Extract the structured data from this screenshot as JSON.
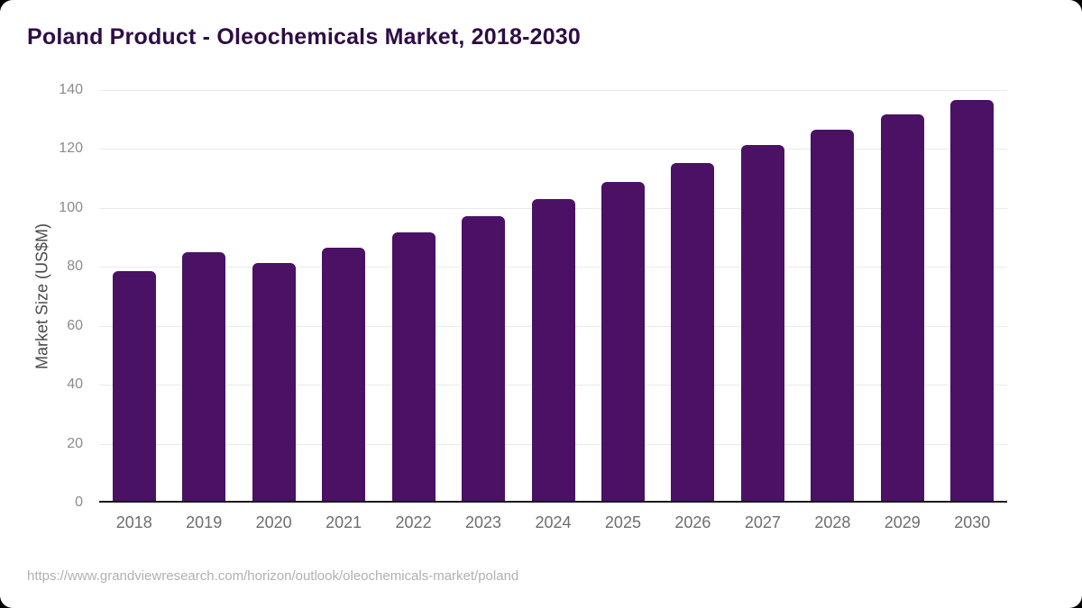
{
  "chart_data": {
    "type": "bar",
    "title": "Poland Product - Oleochemicals Market, 2018-2030",
    "xlabel": "",
    "ylabel": "Market Size (US$M)",
    "categories": [
      "2018",
      "2019",
      "2020",
      "2021",
      "2022",
      "2023",
      "2024",
      "2025",
      "2026",
      "2027",
      "2028",
      "2029",
      "2030"
    ],
    "values": [
      78.6,
      85.0,
      81.4,
      86.5,
      91.8,
      97.3,
      103.1,
      108.8,
      115.2,
      121.3,
      126.5,
      131.8,
      136.7
    ],
    "ylim": [
      0,
      140
    ],
    "y_ticks": [
      0,
      20,
      40,
      60,
      80,
      100,
      120,
      140
    ],
    "grid": "horizontal",
    "legend": "none"
  },
  "colors": {
    "bar": "#4A1164",
    "title": "#2E0D45",
    "card_background": "#ffffff",
    "page_background": "#000000",
    "gridline": "#eaeaea",
    "axis_line": "#1a1a1a",
    "y_tick_text": "#8b8b8b",
    "x_tick_text": "#6e6e6e",
    "axis_title_text": "#4a4a4a",
    "source_text": "#b1b1b1"
  },
  "footer": {
    "source_url": "https://www.grandviewresearch.com/horizon/outlook/oleochemicals-market/poland"
  }
}
